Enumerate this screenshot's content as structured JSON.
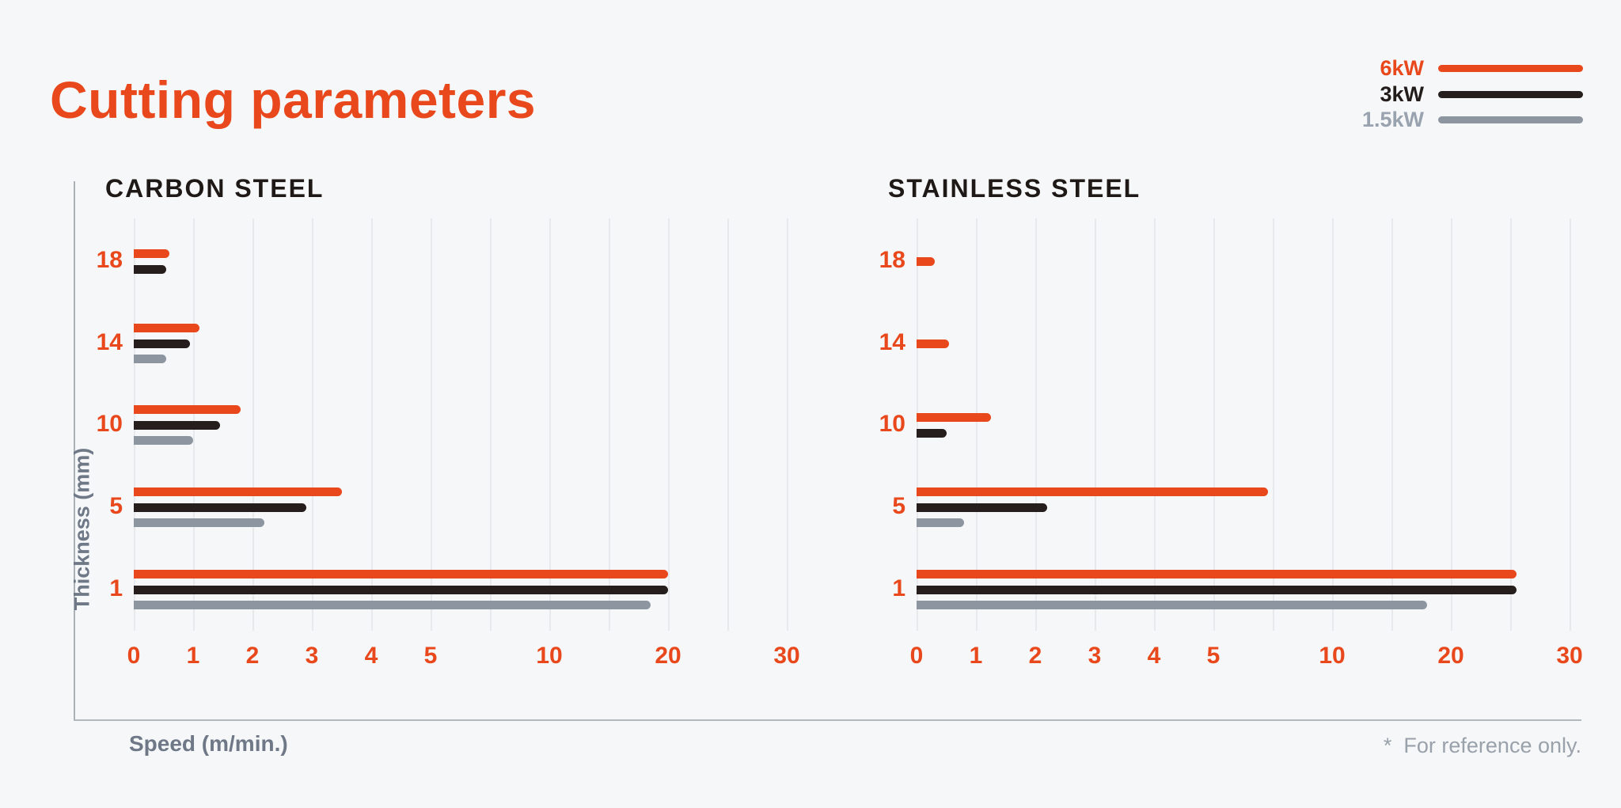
{
  "title": "Cutting parameters",
  "footnote": "*  For reference only.",
  "legend": {
    "position": "top-right",
    "items": [
      {
        "label": "6kW",
        "color": "#E8481C",
        "text_color": "#E8481C"
      },
      {
        "label": "3kW",
        "color": "#251E1C",
        "text_color": "#221C1A"
      },
      {
        "label": "1.5kW",
        "color": "#8D95A1",
        "text_color": "#99A2AF"
      }
    ]
  },
  "axes": {
    "y_title": "Thickness (mm)",
    "x_title": "Speed (m/min.)"
  },
  "colors": {
    "background": "#F6F7F8",
    "accent_orange": "#E8481C",
    "bar_black": "#251E1C",
    "bar_gray": "#8D95A1",
    "gridline": "#E7E9EC",
    "axis_line": "#ACB0B7",
    "muted_text": "#6F7887"
  },
  "chart_data": [
    {
      "type": "bar",
      "orientation": "horizontal",
      "title": "CARBON STEEL",
      "ylabel": "Thickness (mm)",
      "xlabel": "Speed (m/min.)",
      "categories": [
        "18",
        "14",
        "10",
        "5",
        "1"
      ],
      "x_ticks": [
        0,
        1,
        2,
        3,
        4,
        5,
        10,
        20,
        30
      ],
      "x_range": [
        0,
        30
      ],
      "grid": true,
      "x_scale": "piecewise: 0-5 linear; segments 5-10, 10-20, 20-30 each compressed to the width of 2 linear units",
      "series": [
        {
          "name": "6kW",
          "values": [
            0.6,
            1.1,
            1.8,
            3.5,
            20
          ]
        },
        {
          "name": "3kW",
          "values": [
            0.55,
            0.95,
            1.45,
            2.9,
            20
          ]
        },
        {
          "name": "1.5kW",
          "values": [
            null,
            0.55,
            1.0,
            2.2,
            18.5
          ]
        }
      ]
    },
    {
      "type": "bar",
      "orientation": "horizontal",
      "title": "STAINLESS STEEL",
      "ylabel": "Thickness (mm)",
      "xlabel": "Speed (m/min.)",
      "categories": [
        "18",
        "14",
        "10",
        "5",
        "1"
      ],
      "x_ticks": [
        0,
        1,
        2,
        3,
        4,
        5,
        10,
        20,
        30
      ],
      "x_range": [
        0,
        30
      ],
      "grid": true,
      "x_scale": "piecewise: 0-5 linear; segments 5-10, 10-20, 20-30 each compressed to the width of 2 linear units",
      "series": [
        {
          "name": "6kW",
          "values": [
            0.3,
            0.55,
            1.25,
            7.3,
            25.5
          ]
        },
        {
          "name": "3kW",
          "values": [
            null,
            null,
            0.5,
            2.2,
            25.5
          ]
        },
        {
          "name": "1.5kW",
          "values": [
            null,
            null,
            null,
            0.8,
            18
          ]
        }
      ]
    }
  ]
}
